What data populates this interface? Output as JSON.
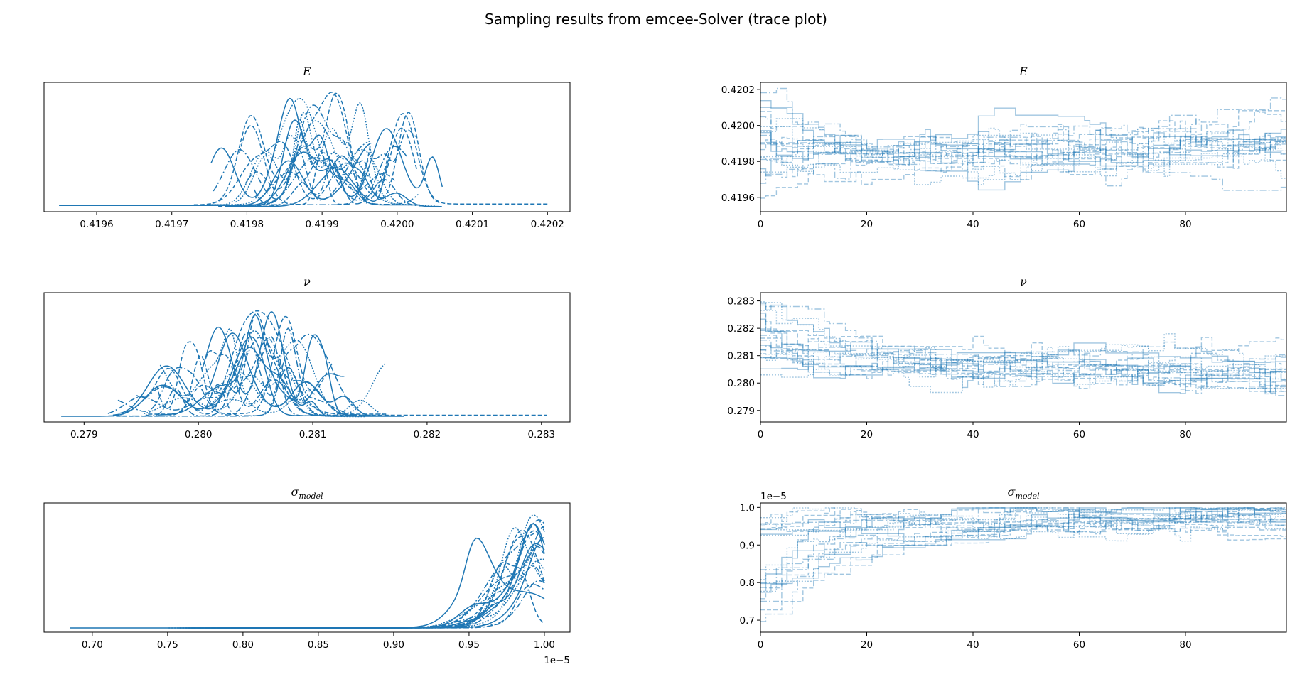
{
  "figure_title": "Sampling results from emcee-Solver (trace plot)",
  "colors": {
    "kde": "#1f77b4",
    "trace": "#1f77b4"
  },
  "chart_data": [
    {
      "type": "line",
      "role": "kde",
      "param": "E",
      "title": "E",
      "xlim": [
        0.41953,
        0.42023
      ],
      "xticks": [
        0.4196,
        0.4197,
        0.4198,
        0.4199,
        0.42,
        0.4201,
        0.4202
      ],
      "xtick_labels": [
        "0.4196",
        "0.4197",
        "0.4198",
        "0.4199",
        "0.4200",
        "0.4201",
        "0.4202"
      ],
      "offset_label": "",
      "n_chains": 20,
      "chain_range": [
        0.41972,
        0.42006
      ],
      "outlier_range": [
        0.41955,
        0.4202
      ],
      "peak": 0.41992,
      "tail": "none"
    },
    {
      "type": "line",
      "role": "trace",
      "param": "E",
      "title": "E",
      "xlim": [
        0,
        99
      ],
      "xticks": [
        0,
        20,
        40,
        60,
        80
      ],
      "xtick_labels": [
        "0",
        "20",
        "40",
        "60",
        "80"
      ],
      "ylim": [
        0.41952,
        0.42024
      ],
      "yticks": [
        0.4196,
        0.4198,
        0.42,
        0.4202
      ],
      "ytick_labels": [
        "0.4196",
        "0.4198",
        "0.4200",
        "0.4202"
      ],
      "offset_label": "",
      "n_chains": 20,
      "start_range": [
        0.41955,
        0.42021
      ],
      "mid_value": 0.41983,
      "end_value": 0.4199,
      "final_spread": 7e-05
    },
    {
      "type": "line",
      "role": "kde",
      "param": "nu",
      "title": "ν",
      "xlim": [
        0.27865,
        0.28325
      ],
      "xticks": [
        0.279,
        0.28,
        0.281,
        0.282,
        0.283
      ],
      "xtick_labels": [
        "0.279",
        "0.280",
        "0.281",
        "0.282",
        "0.283"
      ],
      "offset_label": "",
      "n_chains": 20,
      "chain_range": [
        0.2792,
        0.2818
      ],
      "outlier_range": [
        0.2788,
        0.28305
      ],
      "peak": 0.2804,
      "tail": "none"
    },
    {
      "type": "line",
      "role": "trace",
      "param": "nu",
      "title": "ν",
      "xlim": [
        0,
        99
      ],
      "xticks": [
        0,
        20,
        40,
        60,
        80
      ],
      "xtick_labels": [
        "0",
        "20",
        "40",
        "60",
        "80"
      ],
      "ylim": [
        0.27858,
        0.2833
      ],
      "yticks": [
        0.279,
        0.28,
        0.281,
        0.282,
        0.283
      ],
      "ytick_labels": [
        "0.279",
        "0.280",
        "0.281",
        "0.282",
        "0.283"
      ],
      "offset_label": "",
      "n_chains": 20,
      "start_range": [
        0.2804,
        0.283
      ],
      "mid_value": 0.2807,
      "end_value": 0.2802,
      "final_spread": 0.0004
    },
    {
      "type": "line",
      "role": "kde",
      "param": "sigma_model",
      "title": "σ",
      "title_sub": "model",
      "xlim": [
        0.668,
        1.017
      ],
      "xticks": [
        0.7,
        0.75,
        0.8,
        0.85,
        0.9,
        0.95,
        1.0
      ],
      "xtick_labels": [
        "0.70",
        "0.75",
        "0.80",
        "0.85",
        "0.90",
        "0.95",
        "1.00"
      ],
      "offset_label": "1e−5",
      "n_chains": 20,
      "chain_range": [
        0.75,
        1.0
      ],
      "outlier_range": [
        0.685,
        1.0
      ],
      "peak": 1.0,
      "tail": "right"
    },
    {
      "type": "line",
      "role": "trace",
      "param": "sigma_model",
      "title": "σ",
      "title_sub": "model",
      "xlim": [
        0,
        99
      ],
      "xticks": [
        0,
        20,
        40,
        60,
        80
      ],
      "xtick_labels": [
        "0",
        "20",
        "40",
        "60",
        "80"
      ],
      "ylim": [
        0.668,
        1.012
      ],
      "yticks": [
        0.7,
        0.8,
        0.9,
        1.0
      ],
      "ytick_labels": [
        "0.7",
        "0.8",
        "0.9",
        "1.0"
      ],
      "offset_label": "1e−5",
      "n_chains": 20,
      "start_range": [
        0.69,
        1.0
      ],
      "mid_value": 0.97,
      "end_value": 0.985,
      "final_spread": 0.02
    }
  ]
}
